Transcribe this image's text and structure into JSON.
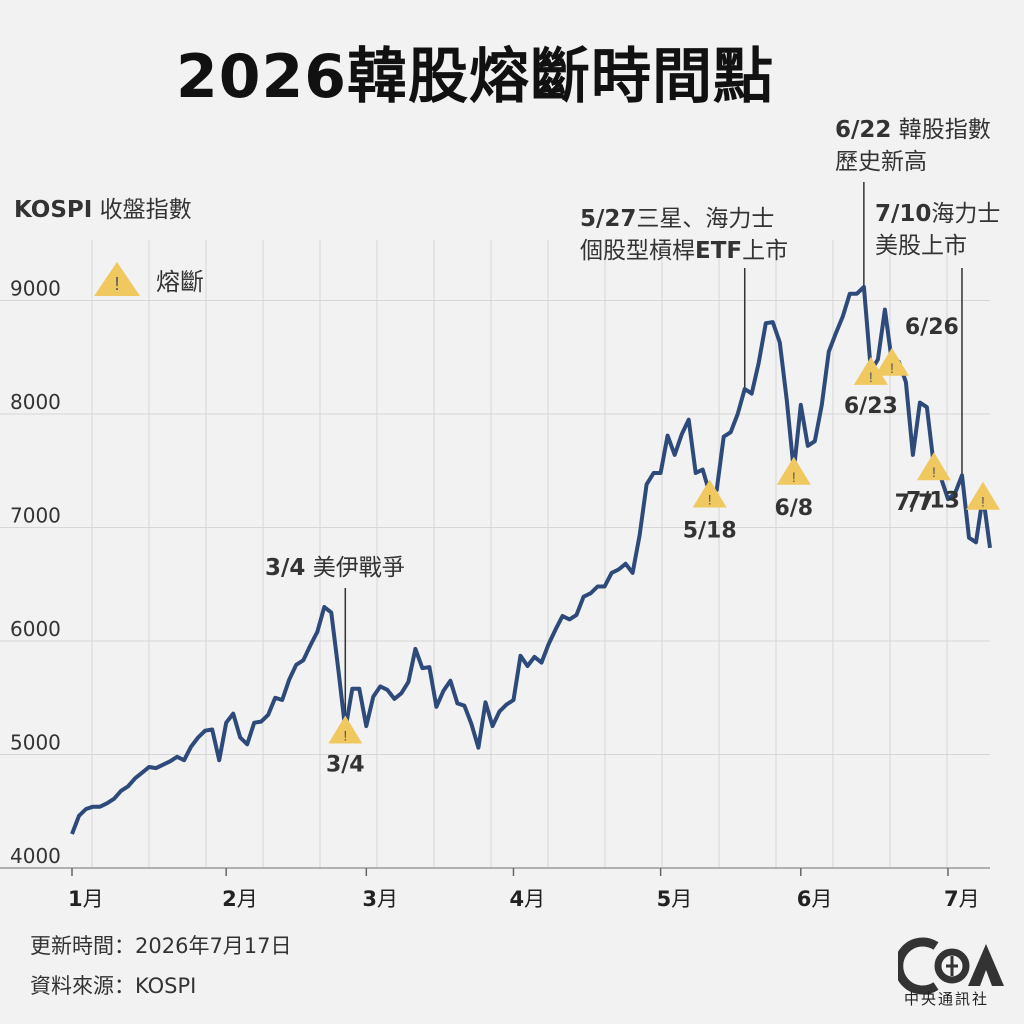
{
  "title": "2026韓股熔斷時間點",
  "ylabel_bold": "KOSPI",
  "ylabel_rest": " 收盤指數",
  "legend_label": "熔斷",
  "footer": {
    "updated": "更新時間：2026年7月17日",
    "source": "資料來源：KOSPI"
  },
  "logo": {
    "text": "中央通訊社"
  },
  "colors": {
    "line": "#2e4a7a",
    "warning": "#f0c860",
    "grid": "#d6d6d6",
    "background": "#f2f2f2"
  },
  "chart_data": {
    "type": "line",
    "title": "2026韓股熔斷時間點",
    "ylabel": "KOSPI 收盤指數",
    "ylim": [
      4000,
      9500
    ],
    "yticks": [
      4000,
      5000,
      6000,
      7000,
      8000,
      9000
    ],
    "xticks": [
      {
        "label": "1月",
        "i": 0
      },
      {
        "label": "2月",
        "i": 22
      },
      {
        "label": "3月",
        "i": 42
      },
      {
        "label": "4月",
        "i": 63
      },
      {
        "label": "5月",
        "i": 84
      },
      {
        "label": "6月",
        "i": 104
      },
      {
        "label": "7月",
        "i": 125
      }
    ],
    "values": [
      4300,
      4460,
      4520,
      4540,
      4540,
      4570,
      4610,
      4680,
      4720,
      4790,
      4840,
      4890,
      4880,
      4910,
      4940,
      4980,
      4950,
      5070,
      5150,
      5210,
      5220,
      4950,
      5280,
      5360,
      5150,
      5090,
      5280,
      5290,
      5350,
      5500,
      5480,
      5660,
      5790,
      5830,
      5960,
      6080,
      6300,
      6250,
      5750,
      5220,
      5580,
      5580,
      5250,
      5510,
      5600,
      5570,
      5490,
      5540,
      5640,
      5930,
      5760,
      5770,
      5420,
      5560,
      5650,
      5450,
      5430,
      5270,
      5060,
      5460,
      5250,
      5380,
      5440,
      5480,
      5870,
      5780,
      5860,
      5810,
      5970,
      6100,
      6220,
      6190,
      6230,
      6390,
      6420,
      6480,
      6480,
      6600,
      6630,
      6680,
      6600,
      6930,
      7380,
      7480,
      7480,
      7810,
      7640,
      7820,
      7950,
      7480,
      7510,
      7300,
      7330,
      7800,
      7840,
      8000,
      8220,
      8180,
      8450,
      8800,
      8810,
      8630,
      8120,
      7500,
      8080,
      7720,
      7760,
      8080,
      8550,
      8710,
      8860,
      9060,
      9060,
      9120,
      8380,
      8480,
      8920,
      8460,
      8460,
      8280,
      7640,
      8100,
      8060,
      7540,
      7440,
      7250,
      7300,
      7460,
      6910,
      6870,
      7280,
      6820
    ],
    "breakers": [
      {
        "label": "3/4",
        "i": 39
      },
      {
        "label": "5/18",
        "i": 91
      },
      {
        "label": "6/8",
        "i": 103
      },
      {
        "label": "6/23",
        "i": 114
      },
      {
        "label": "6/26",
        "i": 117
      },
      {
        "label": "7/7",
        "i": 123
      },
      {
        "label": "7/13",
        "i": 130
      }
    ],
    "annotations": [
      {
        "date": "3/4",
        "text": " 美伊戰爭",
        "i": 39
      },
      {
        "date": "5/27",
        "text": "三星、海力士",
        "line2_pre": "個股型槓桿",
        "line2_bold": "ETF",
        "line2_post": "上市",
        "i": 96
      },
      {
        "date": "6/22",
        "text": " 韓股指數",
        "line2": "歷史新高",
        "i": 113
      },
      {
        "date": "7/10",
        "text": "海力士",
        "line2": "美股上市",
        "i": 127
      }
    ]
  }
}
